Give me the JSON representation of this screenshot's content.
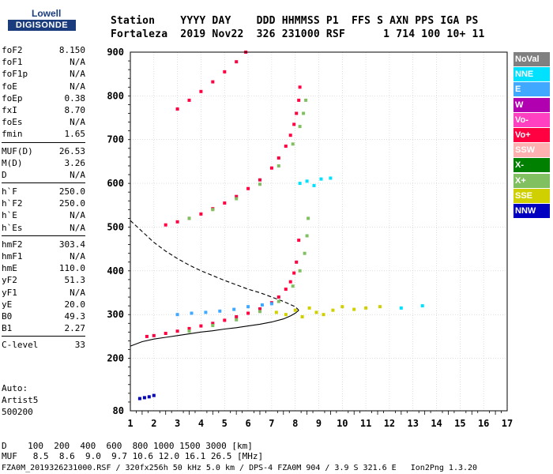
{
  "logo": {
    "line1": "Lowell",
    "line2": "DIGISONDE"
  },
  "header": {
    "row1": "Station    YYYY DAY    DDD HHMMSS P1  FFS S AXN PPS IGA PS",
    "row2": "Fortaleza  2019 Nov22  326 231000 RSF      1 714 100 10+ 11"
  },
  "params_group1": [
    {
      "label": "foF2",
      "value": "8.150"
    },
    {
      "label": "foF1",
      "value": "N/A"
    },
    {
      "label": "foF1p",
      "value": "N/A"
    },
    {
      "label": "foE",
      "value": "N/A"
    },
    {
      "label": "foEp",
      "value": "0.38"
    },
    {
      "label": "fxI",
      "value": "8.70"
    },
    {
      "label": "foEs",
      "value": "N/A"
    },
    {
      "label": "fmin",
      "value": "1.65"
    }
  ],
  "params_group2": [
    {
      "label": "MUF(D)",
      "value": "26.53"
    },
    {
      "label": "M(D)",
      "value": "3.26"
    },
    {
      "label": "D",
      "value": "N/A"
    }
  ],
  "params_group3": [
    {
      "label": "h`F",
      "value": "250.0"
    },
    {
      "label": "h`F2",
      "value": "250.0"
    },
    {
      "label": "h`E",
      "value": "N/A"
    },
    {
      "label": "h`Es",
      "value": "N/A"
    }
  ],
  "params_group4": [
    {
      "label": "hmF2",
      "value": "303.4"
    },
    {
      "label": "hmF1",
      "value": "N/A"
    },
    {
      "label": "hmE",
      "value": "110.0"
    },
    {
      "label": "yF2",
      "value": "51.3"
    },
    {
      "label": "yF1",
      "value": "N/A"
    },
    {
      "label": "yE",
      "value": "20.0"
    },
    {
      "label": "B0",
      "value": "49.3"
    },
    {
      "label": "B1",
      "value": "2.27"
    }
  ],
  "params_group5": [
    {
      "label": "C-level",
      "value": "33"
    }
  ],
  "auto": {
    "line1": "Auto:",
    "line2": "Artist5",
    "line3": "500200"
  },
  "footer": {
    "row1": "D    100  200  400  600  800 1000 1500 3000 [km]",
    "row2": "MUF   8.5  8.6  9.0  9.7 10.6 12.0 16.1 26.5 [MHz]",
    "row3": "FZA0M_2019326231000.RSF / 320fx256h 50 kHz 5.0 km / DPS-4 FZA0M 904 / 3.9 S 321.6 E   Ion2Png 1.3.20"
  },
  "legend": [
    {
      "label": "NoVal",
      "color": "#808080"
    },
    {
      "label": "NNE",
      "color": "#00e0ff"
    },
    {
      "label": "E",
      "color": "#40a8ff"
    },
    {
      "label": "W",
      "color": "#b000b0"
    },
    {
      "label": "Vo-",
      "color": "#ff40c0"
    },
    {
      "label": "Vo+",
      "color": "#ff0040"
    },
    {
      "label": "SSW",
      "color": "#ffb0b0"
    },
    {
      "label": "X-",
      "color": "#008000"
    },
    {
      "label": "X+",
      "color": "#80c060"
    },
    {
      "label": "SSE",
      "color": "#d0d000"
    },
    {
      "label": "NNW",
      "color": "#0000c0"
    }
  ],
  "chart_data": {
    "type": "scatter",
    "title": "",
    "xlabel": "",
    "ylabel": "",
    "xlim": [
      1,
      17
    ],
    "ylim": [
      80,
      900
    ],
    "x_ticks": [
      "1",
      "2",
      "3",
      "4",
      "5",
      "6",
      "7",
      "8",
      "9",
      "10",
      "11",
      "12",
      "13",
      "14",
      "15",
      "16",
      "17"
    ],
    "y_ticks": [
      {
        "value": 80,
        "label": "80"
      },
      {
        "value": 200,
        "label": "200"
      },
      {
        "value": 300,
        "label": "300"
      },
      {
        "value": 400,
        "label": "400"
      },
      {
        "value": 500,
        "label": "500"
      },
      {
        "value": 600,
        "label": "600"
      },
      {
        "value": 700,
        "label": "700"
      },
      {
        "value": 800,
        "label": "800"
      },
      {
        "value": 900,
        "label": "900"
      }
    ],
    "grid": true,
    "series": [
      {
        "trace": "o-trace 1st hop",
        "color": "#ff0040",
        "x": [
          1.7,
          2.0,
          2.5,
          3.0,
          3.5,
          4.0,
          4.5,
          5.0,
          5.5,
          6.0,
          6.5,
          7.0,
          7.3,
          7.6,
          7.8,
          7.95,
          8.05,
          8.15
        ],
        "y": [
          250,
          252,
          257,
          262,
          268,
          274,
          280,
          287,
          295,
          303,
          313,
          327,
          340,
          358,
          375,
          395,
          420,
          470
        ]
      },
      {
        "trace": "x-trace 1st hop",
        "color": "#80c060",
        "x": [
          3.5,
          4.5,
          5.5,
          6.5,
          7.3,
          7.9,
          8.2,
          8.4,
          8.5,
          8.55
        ],
        "y": [
          262,
          275,
          288,
          307,
          330,
          365,
          400,
          440,
          480,
          520
        ]
      },
      {
        "trace": "o-trace 2nd hop",
        "color": "#ff0040",
        "x": [
          2.5,
          3.0,
          3.5,
          4.0,
          4.5,
          5.0,
          5.5,
          6.0,
          6.5,
          7.0,
          7.3,
          7.6,
          7.8,
          7.95,
          8.05,
          8.15,
          8.2
        ],
        "y": [
          505,
          512,
          520,
          530,
          542,
          555,
          570,
          588,
          608,
          635,
          658,
          685,
          710,
          735,
          760,
          790,
          820
        ]
      },
      {
        "trace": "x-trace 2nd hop",
        "color": "#80c060",
        "x": [
          3.5,
          4.5,
          5.5,
          6.5,
          7.3,
          7.9,
          8.2,
          8.35,
          8.45
        ],
        "y": [
          520,
          540,
          565,
          598,
          640,
          690,
          730,
          760,
          790
        ]
      },
      {
        "trace": "o-trace 3rd hop",
        "color": "#ff0040",
        "x": [
          3.0,
          3.5,
          4.0,
          4.5,
          5.0,
          5.5,
          5.9
        ],
        "y": [
          770,
          790,
          810,
          832,
          855,
          878,
          900
        ]
      },
      {
        "trace": "spread F SSE",
        "color": "#d0d000",
        "x": [
          7.2,
          7.6,
          8.0,
          8.3,
          8.6,
          8.9,
          9.2,
          9.6,
          10.0,
          10.5,
          11.0,
          11.6
        ],
        "y": [
          305,
          300,
          310,
          295,
          315,
          305,
          300,
          310,
          318,
          312,
          315,
          318
        ]
      },
      {
        "trace": "spread F NNE",
        "color": "#00e0ff",
        "x": [
          8.2,
          8.5,
          8.8,
          9.1,
          9.5,
          12.5,
          13.4
        ],
        "y": [
          600,
          605,
          595,
          610,
          612,
          315,
          320
        ]
      },
      {
        "trace": "oblique E",
        "color": "#40a8ff",
        "x": [
          3.0,
          3.6,
          4.2,
          4.8,
          5.4,
          6.0,
          6.6,
          7.0
        ],
        "y": [
          300,
          303,
          305,
          308,
          312,
          318,
          322,
          325
        ]
      },
      {
        "trace": "low NNW",
        "color": "#0000c0",
        "x": [
          1.4,
          1.6,
          1.8,
          2.0
        ],
        "y": [
          108,
          110,
          112,
          115
        ]
      }
    ],
    "profile_solid": {
      "x": [
        1.0,
        1.5,
        2.0,
        2.5,
        3.0,
        3.5,
        4.0,
        4.5,
        5.0,
        5.5,
        6.0,
        6.5,
        7.0,
        7.5,
        7.8,
        8.0,
        8.15
      ],
      "y": [
        228,
        238,
        244,
        248,
        252,
        256,
        260,
        263,
        267,
        270,
        274,
        278,
        283,
        290,
        297,
        303,
        310
      ]
    },
    "profile_dashed": {
      "x": [
        1.0,
        1.5,
        2.0,
        2.5,
        3.0,
        3.5,
        4.0,
        5.0,
        6.0,
        6.5,
        7.0,
        7.5,
        8.0,
        8.15
      ],
      "y": [
        515,
        490,
        465,
        445,
        428,
        413,
        400,
        378,
        358,
        350,
        340,
        330,
        318,
        310
      ]
    }
  }
}
